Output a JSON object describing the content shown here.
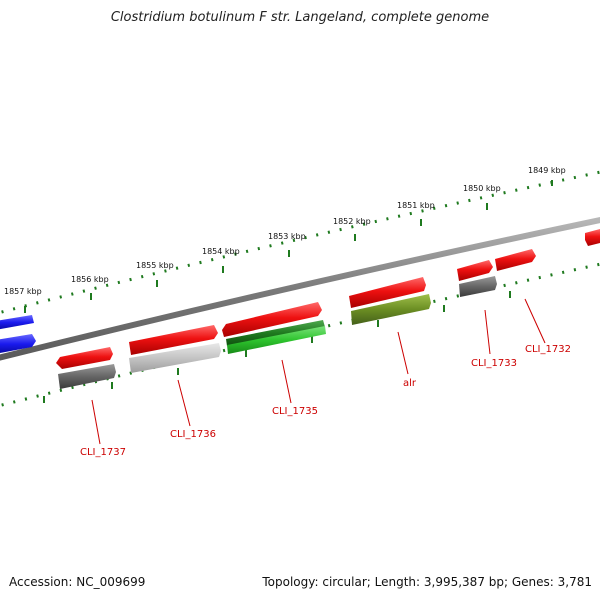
{
  "title": "Clostridium botulinum F str. Langeland, complete genome",
  "footer": {
    "accession": "Accession: NC_009699",
    "topology": "Topology: circular; Length: 3,995,387 bp; Genes: 3,781"
  },
  "ticks": [
    "1849 kbp",
    "1850 kbp",
    "1851 kbp",
    "1852 kbp",
    "1853 kbp",
    "1854 kbp",
    "1855 kbp",
    "1856 kbp",
    "1857 kbp"
  ],
  "gene_labels": [
    "CLI_1732",
    "CLI_1733",
    "alr",
    "CLI_1735",
    "CLI_1736",
    "CLI_1737"
  ],
  "colors": {
    "backbone": "#8a8a8a",
    "ticks": "#1f7a1f",
    "gene_forward": "#ee1111",
    "label": "#cc0000",
    "cog_gray": "#666666",
    "cog_lightgray": "#c8c8c8",
    "cog_green": "#33cc33",
    "cog_olive": "#6b8e23",
    "cog_blue": "#1a1aee"
  }
}
